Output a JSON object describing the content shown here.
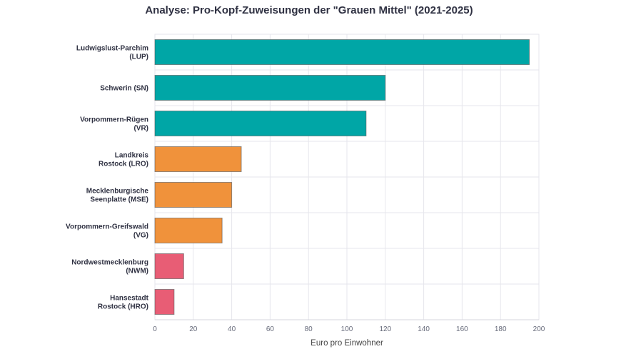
{
  "chart_data": {
    "type": "bar",
    "orientation": "horizontal",
    "title": "Analyse: Pro-Kopf-Zuweisungen der \"Grauen Mittel\" (2021-2025)",
    "xlabel": "Euro pro Einwohner",
    "ylabel": "",
    "xlim": [
      0,
      200
    ],
    "xticks": [
      0,
      20,
      40,
      60,
      80,
      100,
      120,
      140,
      160,
      180,
      200
    ],
    "grid": true,
    "categories": [
      [
        "Ludwigslust-Parchim",
        "(LUP)"
      ],
      [
        "Schwerin (SN)"
      ],
      [
        "Vorpommern-Rügen",
        "(VR)"
      ],
      [
        "Landkreis",
        "Rostock (LRO)"
      ],
      [
        "Mecklenburgische",
        "Seenplatte (MSE)"
      ],
      [
        "Vorpommern-Greifswald",
        "(VG)"
      ],
      [
        "Nordwestmecklenburg",
        "(NWM)"
      ],
      [
        "Hansestadt",
        "Rostock (HRO)"
      ]
    ],
    "values": [
      195,
      120,
      110,
      45,
      40,
      35,
      15,
      10
    ],
    "colors": [
      "#00A6A6",
      "#00A6A6",
      "#00A6A6",
      "#F0923B",
      "#F0923B",
      "#F0923B",
      "#E85D75",
      "#E85D75"
    ]
  }
}
